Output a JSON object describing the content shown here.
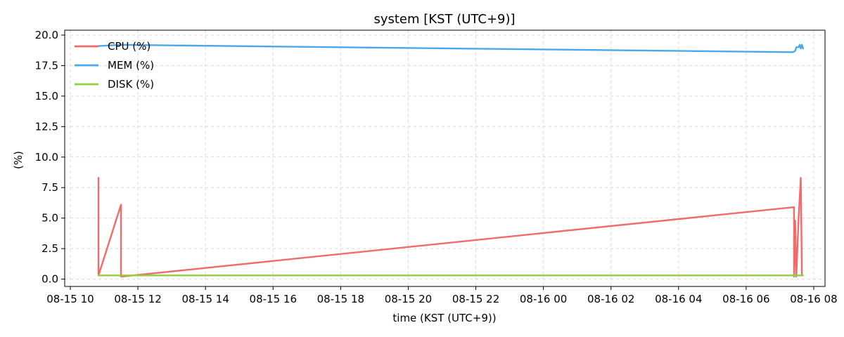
{
  "chart_data": {
    "type": "line",
    "title": "system [KST (UTC+9)]",
    "xlabel": "time (KST (UTC+9))",
    "ylabel": "(%)",
    "ylim": [
      -0.6,
      20.4
    ],
    "xlim": [
      "08-15 09:50",
      "08-16 08:20"
    ],
    "yticks": [
      0.0,
      2.5,
      5.0,
      7.5,
      10.0,
      12.5,
      15.0,
      17.5,
      20.0
    ],
    "xticks": [
      "08-15 10:00",
      "08-15 12:00",
      "08-15 14:00",
      "08-15 16:00",
      "08-15 18:00",
      "08-15 20:00",
      "08-15 22:00",
      "08-16 00:00",
      "08-16 02:00",
      "08-16 04:00",
      "08-16 06:00",
      "08-16 08:00"
    ],
    "xtick_labels": [
      "08-15 10",
      "08-15 12",
      "08-15 14",
      "08-15 16",
      "08-15 18",
      "08-15 20",
      "08-15 22",
      "08-16 00",
      "08-16 02",
      "08-16 04",
      "08-16 06",
      "08-16 08"
    ],
    "grid": true,
    "legend_position": "top-left",
    "series": [
      {
        "name": "CPU (%)",
        "color": "#f26b6b",
        "points": [
          [
            "08-15 10:50",
            8.3
          ],
          [
            "08-15 10:50",
            0.3
          ],
          [
            "08-15 11:30",
            6.1
          ],
          [
            "08-15 11:30",
            0.2
          ],
          [
            "08-16 07:25",
            5.9
          ],
          [
            "08-16 07:25",
            0.2
          ],
          [
            "08-16 07:27",
            4.8
          ],
          [
            "08-16 07:29",
            0.2
          ],
          [
            "08-16 07:33",
            4.9
          ],
          [
            "08-16 07:37",
            8.3
          ],
          [
            "08-16 07:39",
            0.3
          ]
        ]
      },
      {
        "name": "MEM (%)",
        "color": "#4aa8ea",
        "points": [
          [
            "08-15 10:50",
            19.1
          ],
          [
            "08-15 11:30",
            19.2
          ],
          [
            "08-16 07:23",
            18.6
          ],
          [
            "08-16 07:27",
            18.7
          ],
          [
            "08-16 07:29",
            19.0
          ],
          [
            "08-16 07:33",
            19.0
          ],
          [
            "08-16 07:35",
            19.2
          ],
          [
            "08-16 07:37",
            18.9
          ],
          [
            "08-16 07:39",
            19.2
          ],
          [
            "08-16 07:41",
            18.9
          ]
        ]
      },
      {
        "name": "DISK (%)",
        "color": "#8fd13a",
        "points": [
          [
            "08-15 10:50",
            0.3
          ],
          [
            "08-16 07:41",
            0.3
          ]
        ]
      }
    ]
  }
}
